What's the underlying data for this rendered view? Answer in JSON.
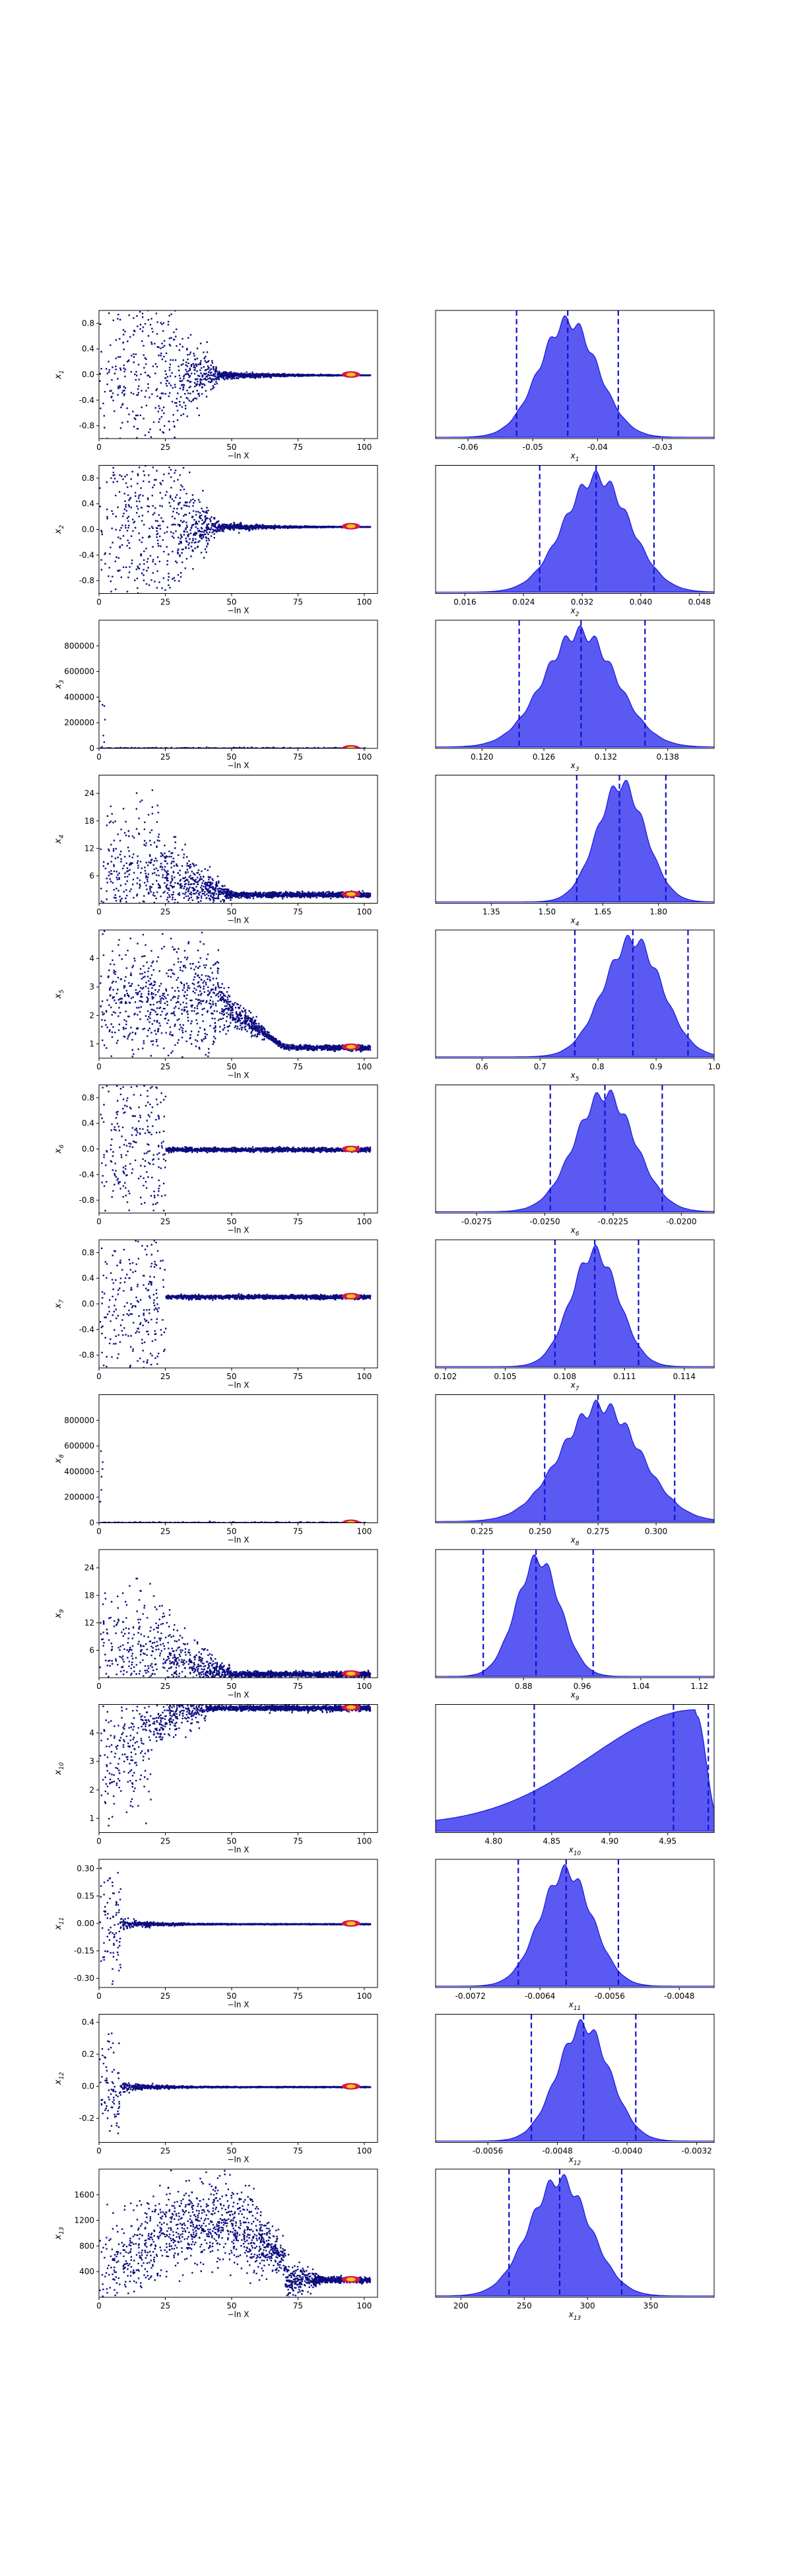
{
  "figure": {
    "trace_xlabel": "−ln X",
    "trace_xticks": [
      0,
      25,
      50,
      75,
      100
    ],
    "trace_xlim": [
      0,
      105
    ]
  },
  "colors": {
    "trace_points": "#0b0b80",
    "trace_hot_1": "#d6164f",
    "trace_hot_2": "#f6c413",
    "posterior_fill": "#5a5af2",
    "posterior_edge": "#1616e0",
    "quantile_line": "#1010d0"
  },
  "chart_data": [
    {
      "type": "scatter",
      "param": "x",
      "sub": "1",
      "ylim": [
        -1.0,
        1.0
      ],
      "yticks": [
        "0.8",
        "0.4",
        "0.0",
        "-0.4",
        "-0.8"
      ],
      "ytick_vals": [
        0.8,
        0.4,
        0.0,
        -0.4,
        -0.8
      ],
      "converge": 0.0,
      "pattern": "a",
      "posterior": {
        "type": "area",
        "xlim": [
          -0.065,
          -0.022
        ],
        "xticks": [
          "-0.06",
          "-0.05",
          "-0.04",
          "-0.03"
        ],
        "xtick_vals": [
          -0.06,
          -0.05,
          -0.04,
          -0.03
        ],
        "mean": -0.0445,
        "sd": 0.0045,
        "skew": 0,
        "quantiles": [
          -0.0525,
          -0.0446,
          -0.0368
        ]
      }
    },
    {
      "type": "scatter",
      "param": "x",
      "sub": "2",
      "ylim": [
        -1.0,
        1.0
      ],
      "yticks": [
        "0.8",
        "0.4",
        "0.0",
        "-0.4",
        "-0.8"
      ],
      "ytick_vals": [
        0.8,
        0.4,
        0.0,
        -0.4,
        -0.8
      ],
      "converge": 0.05,
      "pattern": "b",
      "posterior": {
        "type": "area",
        "xlim": [
          0.012,
          0.05
        ],
        "xticks": [
          "0.016",
          "0.024",
          "0.032",
          "0.040",
          "0.048"
        ],
        "xtick_vals": [
          0.016,
          0.024,
          0.032,
          0.04,
          0.048
        ],
        "mean": 0.034,
        "sd": 0.0045,
        "skew": 0,
        "quantiles": [
          0.0262,
          0.0339,
          0.0418
        ]
      }
    },
    {
      "type": "scatter",
      "param": "x",
      "sub": "3",
      "ylim": [
        0,
        1000000
      ],
      "yticks": [
        "800000",
        "600000",
        "400000",
        "200000",
        "0"
      ],
      "ytick_vals": [
        800000,
        600000,
        400000,
        200000,
        0
      ],
      "converge": 0,
      "pattern": "spike",
      "posterior": {
        "type": "area",
        "xlim": [
          0.1155,
          0.1425
        ],
        "xticks": [
          "0.120",
          "0.126",
          "0.132",
          "0.138"
        ],
        "xtick_vals": [
          0.12,
          0.126,
          0.132,
          0.138
        ],
        "mean": 0.1295,
        "sd": 0.0035,
        "skew": 0,
        "quantiles": [
          0.1236,
          0.1296,
          0.1358
        ]
      }
    },
    {
      "type": "scatter",
      "param": "x",
      "sub": "4",
      "ylim": [
        0,
        28
      ],
      "yticks": [
        "24",
        "18",
        "12",
        "6"
      ],
      "ytick_vals": [
        24,
        18,
        12,
        6
      ],
      "converge": 2.0,
      "pattern": "decay",
      "posterior": {
        "type": "area",
        "xlim": [
          1.2,
          1.95
        ],
        "xticks": [
          "1.35",
          "1.50",
          "1.65",
          "1.80"
        ],
        "xtick_vals": [
          1.35,
          1.5,
          1.65,
          1.8
        ],
        "mean": 1.7,
        "sd": 0.065,
        "skew": 0,
        "quantiles": [
          1.58,
          1.695,
          1.82
        ]
      }
    },
    {
      "type": "scatter",
      "param": "x",
      "sub": "5",
      "ylim": [
        0.5,
        5.0
      ],
      "yticks": [
        "4",
        "3",
        "2",
        "1"
      ],
      "ytick_vals": [
        4,
        3,
        2,
        1
      ],
      "converge": 0.9,
      "pattern": "hump",
      "posterior": {
        "type": "area",
        "xlim": [
          0.52,
          1.0
        ],
        "xticks": [
          "0.6",
          "0.7",
          "0.8",
          "0.9",
          "1.0"
        ],
        "xtick_vals": [
          0.6,
          0.7,
          0.8,
          0.9,
          1.0
        ],
        "mean": 0.86,
        "sd": 0.05,
        "skew": 0,
        "quantiles": [
          0.76,
          0.86,
          0.955
        ]
      }
    },
    {
      "type": "scatter",
      "param": "x",
      "sub": "6",
      "ylim": [
        -1.0,
        1.0
      ],
      "yticks": [
        "0.8",
        "0.4",
        "0.0",
        "-0.4",
        "-0.8"
      ],
      "ytick_vals": [
        0.8,
        0.4,
        0.0,
        -0.4,
        -0.8
      ],
      "converge": 0.0,
      "pattern": "short",
      "posterior": {
        "type": "area",
        "xlim": [
          -0.029,
          -0.0188
        ],
        "xticks": [
          "-0.0275",
          "-0.0250",
          "-0.0225",
          "-0.0200"
        ],
        "xtick_vals": [
          -0.0275,
          -0.025,
          -0.0225,
          -0.02
        ],
        "mean": -0.0228,
        "sd": 0.0011,
        "skew": 0,
        "quantiles": [
          -0.0248,
          -0.0228,
          -0.0207
        ]
      }
    },
    {
      "type": "scatter",
      "param": "x",
      "sub": "7",
      "ylim": [
        -1.0,
        1.0
      ],
      "yticks": [
        "0.8",
        "0.4",
        "0.0",
        "-0.4",
        "-0.8"
      ],
      "ytick_vals": [
        0.8,
        0.4,
        0.0,
        -0.4,
        -0.8
      ],
      "converge": 0.12,
      "pattern": "short",
      "posterior": {
        "type": "area",
        "xlim": [
          0.1015,
          0.1155
        ],
        "xticks": [
          "0.102",
          "0.105",
          "0.108",
          "0.111",
          "0.114"
        ],
        "xtick_vals": [
          0.102,
          0.105,
          0.108,
          0.111,
          0.114
        ],
        "mean": 0.1095,
        "sd": 0.0012,
        "skew": 0,
        "quantiles": [
          0.1075,
          0.1095,
          0.1117
        ]
      }
    },
    {
      "type": "scatter",
      "param": "x",
      "sub": "8",
      "ylim": [
        0,
        1000000
      ],
      "yticks": [
        "800000",
        "600000",
        "400000",
        "200000",
        "0"
      ],
      "ytick_vals": [
        800000,
        600000,
        400000,
        200000,
        0
      ],
      "converge": 0,
      "pattern": "spike",
      "posterior": {
        "type": "area",
        "xlim": [
          0.205,
          0.325
        ],
        "xticks": [
          "0.225",
          "0.250",
          "0.275",
          "0.300"
        ],
        "xtick_vals": [
          0.225,
          0.25,
          0.275,
          0.3
        ],
        "mean": 0.276,
        "sd": 0.017,
        "skew": 0,
        "quantiles": [
          0.252,
          0.275,
          0.308
        ]
      }
    },
    {
      "type": "scatter",
      "param": "x",
      "sub": "9",
      "ylim": [
        0,
        28
      ],
      "yticks": [
        "24",
        "18",
        "12",
        "6"
      ],
      "ytick_vals": [
        24,
        18,
        12,
        6
      ],
      "converge": 0.9,
      "pattern": "decay",
      "posterior": {
        "type": "area",
        "xlim": [
          0.76,
          1.14
        ],
        "xticks": [
          "0.88",
          "0.96",
          "1.04",
          "1.12"
        ],
        "xtick_vals": [
          0.88,
          0.96,
          1.04,
          1.12
        ],
        "mean": 0.9,
        "sd": 0.03,
        "skew": 0,
        "quantiles": [
          0.825,
          0.897,
          0.975
        ]
      }
    },
    {
      "type": "scatter",
      "param": "x",
      "sub": "10",
      "ylim": [
        0.5,
        5.0
      ],
      "yticks": [
        "4",
        "3",
        "2",
        "1"
      ],
      "ytick_vals": [
        4,
        3,
        2,
        1
      ],
      "converge": 4.9,
      "pattern": "rise",
      "posterior": {
        "type": "area",
        "xlim": [
          4.75,
          4.99
        ],
        "xticks": [
          "4.80",
          "4.85",
          "4.90",
          "4.95"
        ],
        "xtick_vals": [
          4.8,
          4.85,
          4.9,
          4.95
        ],
        "mean": 4.975,
        "sd": 0.02,
        "skew": 1,
        "quantiles": [
          4.835,
          4.955,
          4.985
        ]
      }
    },
    {
      "type": "scatter",
      "param": "x",
      "sub": "11",
      "ylim": [
        -0.35,
        0.35
      ],
      "yticks": [
        "0.30",
        "0.15",
        "0.00",
        "-0.15",
        "-0.30"
      ],
      "ytick_vals": [
        0.3,
        0.15,
        0.0,
        -0.15,
        -0.3
      ],
      "converge": 0.0,
      "pattern": "narrow",
      "posterior": {
        "type": "area",
        "xlim": [
          -0.0076,
          -0.0044
        ],
        "xticks": [
          "-0.0072",
          "-0.0064",
          "-0.0056",
          "-0.0048"
        ],
        "xtick_vals": [
          -0.0072,
          -0.0064,
          -0.0056,
          -0.0048
        ],
        "mean": -0.0061,
        "sd": 0.0003,
        "skew": 0,
        "quantiles": [
          -0.00665,
          -0.0061,
          -0.0055
        ]
      }
    },
    {
      "type": "scatter",
      "param": "x",
      "sub": "12",
      "ylim": [
        -0.35,
        0.45
      ],
      "yticks": [
        "0.4",
        "0.2",
        "0.0",
        "-0.2"
      ],
      "ytick_vals": [
        0.4,
        0.2,
        0.0,
        -0.2
      ],
      "converge": 0.0,
      "pattern": "narrow",
      "posterior": {
        "type": "area",
        "xlim": [
          -0.0062,
          -0.003
        ],
        "xticks": [
          "-0.0056",
          "-0.0048",
          "-0.0040",
          "-0.0032"
        ],
        "xtick_vals": [
          -0.0056,
          -0.0048,
          -0.004,
          -0.0032
        ],
        "mean": -0.0045,
        "sd": 0.0003,
        "skew": 0,
        "quantiles": [
          -0.0051,
          -0.0045,
          -0.0039
        ]
      }
    },
    {
      "type": "scatter",
      "param": "x",
      "sub": "13",
      "ylim": [
        0,
        2000
      ],
      "yticks": [
        "1600",
        "1200",
        "800",
        "400"
      ],
      "ytick_vals": [
        1600,
        1200,
        800,
        400
      ],
      "converge": 280,
      "pattern": "long",
      "posterior": {
        "type": "area",
        "xlim": [
          180,
          400
        ],
        "xticks": [
          "200",
          "250",
          "300",
          "350"
        ],
        "xtick_vals": [
          200,
          250,
          300,
          350
        ],
        "mean": 278,
        "sd": 24,
        "skew": 0,
        "quantiles": [
          238,
          278,
          327
        ]
      }
    }
  ]
}
